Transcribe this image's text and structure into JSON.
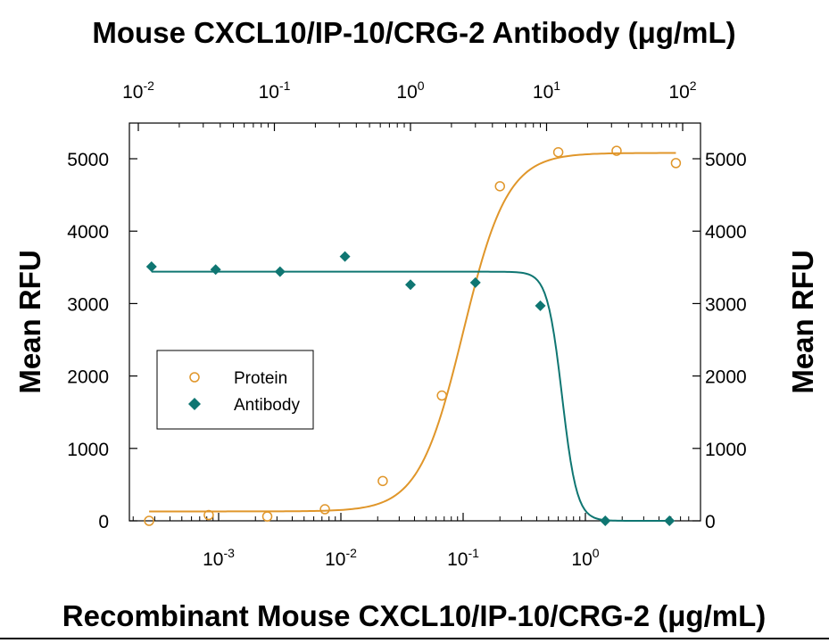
{
  "chart_data": {
    "type": "scatter",
    "title": "",
    "top_axis": {
      "label": "Mouse CXCL10/IP-10/CRG-2 Antibody (μg/mL)",
      "scale": "log",
      "range": [
        0.01,
        100
      ],
      "major_ticks": [
        {
          "base": "10",
          "exp": "-2"
        },
        {
          "base": "10",
          "exp": "-1"
        },
        {
          "base": "10",
          "exp": "0"
        },
        {
          "base": "10",
          "exp": "1"
        },
        {
          "base": "10",
          "exp": "2"
        }
      ]
    },
    "bottom_axis": {
      "label": "Recombinant Mouse CXCL10/IP-10/CRG-2 (μg/mL)",
      "scale": "log",
      "range": [
        0.0002,
        7
      ],
      "major_ticks": [
        {
          "base": "10",
          "exp": "-3"
        },
        {
          "base": "10",
          "exp": "-2"
        },
        {
          "base": "10",
          "exp": "-1"
        },
        {
          "base": "10",
          "exp": "0"
        }
      ]
    },
    "y_axis": {
      "label": "Mean RFU",
      "range": [
        0,
        5500
      ],
      "ticks": [
        "0",
        "1000",
        "2000",
        "3000",
        "4000",
        "5000"
      ]
    },
    "legend": {
      "position": "middle-left",
      "entries": [
        "Protein",
        "Antibody"
      ]
    },
    "grid": false,
    "series": [
      {
        "name": "Protein",
        "axis": "bottom",
        "marker": "open-circle",
        "color": "#E0962A",
        "x": [
          0.00027,
          0.00083,
          0.0025,
          0.0074,
          0.022,
          0.067,
          0.2,
          0.6,
          1.8,
          5.5
        ],
        "y": [
          0,
          80,
          60,
          160,
          550,
          1730,
          4620,
          5090,
          5110,
          4940
        ],
        "fit": {
          "bottom": 130,
          "top": 5080,
          "ec50": 0.1,
          "hill": 2.4
        }
      },
      {
        "name": "Antibody",
        "axis": "top",
        "marker": "filled-diamond",
        "color": "#0F7672",
        "x": [
          0.0125,
          0.037,
          0.11,
          0.33,
          1.0,
          3.0,
          9.0,
          27,
          80
        ],
        "y": [
          3510,
          3470,
          3440,
          3650,
          3260,
          3290,
          2970,
          0,
          0
        ],
        "fit": {
          "bottom": 0,
          "top": 3440,
          "ec50": 13,
          "hill": 8
        }
      }
    ]
  }
}
